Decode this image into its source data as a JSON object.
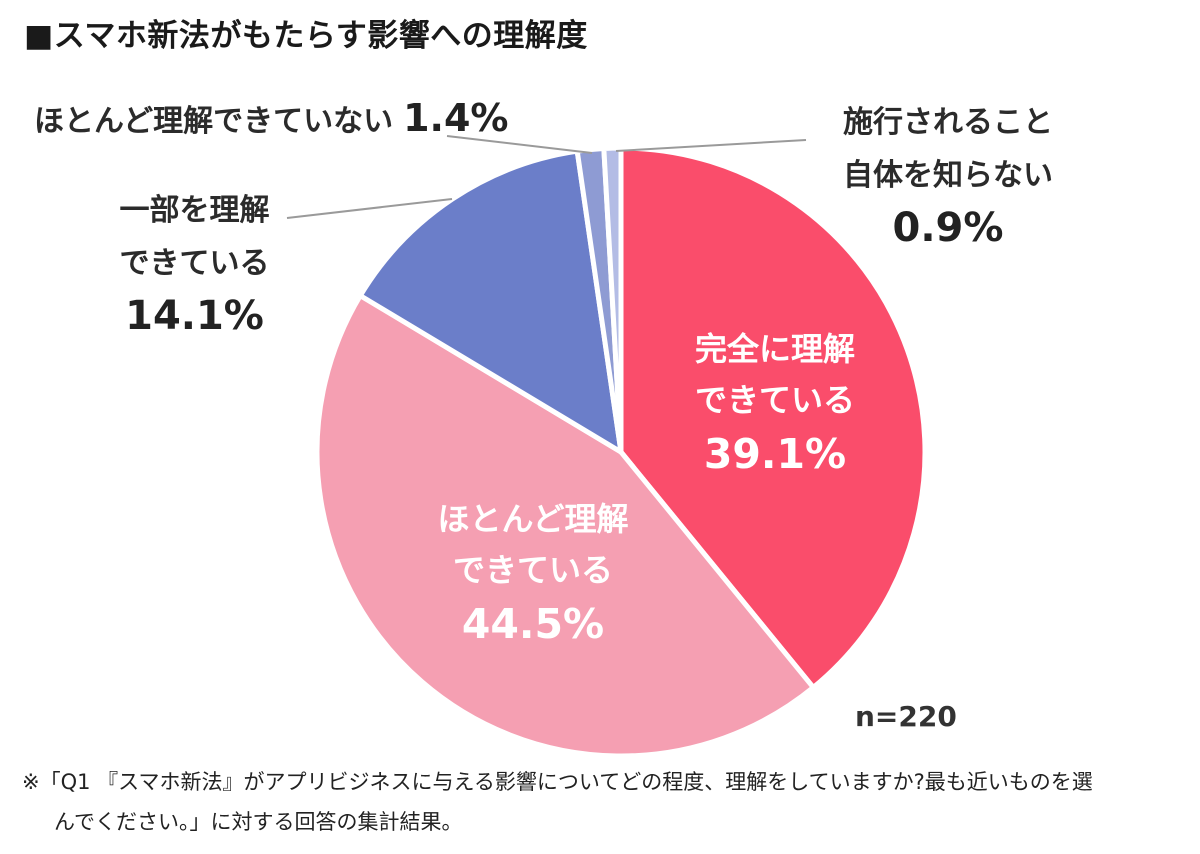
{
  "page": {
    "title": "■スマホ新法がもたらす影響への理解度",
    "sample_size_label": "n=220",
    "footnote_line1": "※「Q1 『スマホ新法』がアプリビジネスに与える影響についてどの程度、理解をしていますか?最も近いものを選",
    "footnote_line2": "んでください。」に対する回答の集計結果。"
  },
  "chart_data": {
    "type": "pie",
    "title": "スマホ新法がもたらす影響への理解度",
    "unit": "percent",
    "sample_size": 220,
    "start_angle_deg": 0,
    "direction": "clockwise",
    "slice_border_color": "#ffffff",
    "leader_line_color": "#9a9a9a",
    "slices": [
      {
        "label": "完全に理解できている",
        "value": 39.1,
        "color": "#fa4d6b",
        "label_placement": "inside"
      },
      {
        "label": "ほとんど理解できている",
        "value": 44.5,
        "color": "#f59fb2",
        "label_placement": "inside"
      },
      {
        "label": "一部を理解できている",
        "value": 14.1,
        "color": "#6b7ec9",
        "label_placement": "outside-left"
      },
      {
        "label": "ほとんど理解できていない",
        "value": 1.4,
        "color": "#8e9bd3",
        "label_placement": "outside-top-left"
      },
      {
        "label": "施行されること自体を知らない",
        "value": 0.9,
        "color": "#b3bce5",
        "label_placement": "outside-top-right"
      }
    ]
  },
  "callouts": {
    "fully": {
      "line1": "完全に理解",
      "line2": "できている",
      "pct": "39.1%"
    },
    "mostly": {
      "line1": "ほとんど理解",
      "line2": "できている",
      "pct": "44.5%"
    },
    "partial": {
      "line1": "一部を理解",
      "line2": "できている",
      "pct": "14.1%"
    },
    "mostly_not": {
      "text": "ほとんど理解できていない",
      "pct": "1.4%"
    },
    "unaware": {
      "line1": "施行されること",
      "line2": "自体を知らない",
      "pct": "0.9%"
    }
  }
}
